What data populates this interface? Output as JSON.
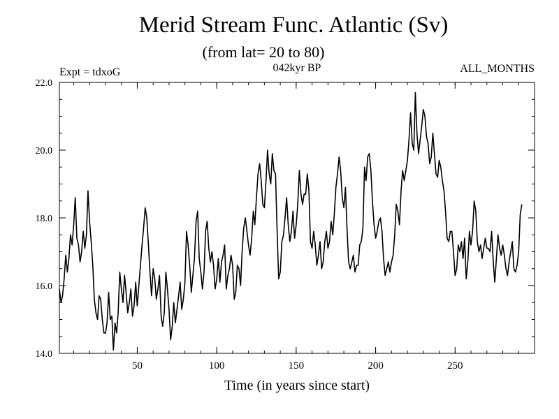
{
  "chart_data": {
    "type": "line",
    "title": "Merid Stream Func. Atlantic (Sv)",
    "subtitle": "(from lat= 20 to 80)",
    "left_label": "Expt = tdxoG",
    "center_label": "042kyr BP",
    "right_label": "ALL_MONTHS",
    "xlabel": "Time (in years since start)",
    "ylabel": "",
    "xlim": [
      1,
      300
    ],
    "ylim": [
      14.0,
      22.0
    ],
    "x_ticks": [
      50,
      100,
      150,
      200,
      250
    ],
    "x_tick_labels": [
      "50",
      "100",
      "150",
      "200",
      "250"
    ],
    "y_ticks": [
      14,
      16,
      18,
      20,
      22
    ],
    "y_tick_labels": [
      "14.0",
      "16.0",
      "18.0",
      "20.0",
      "22.0"
    ],
    "grid": false,
    "series": [
      {
        "name": "Merid Stream Func. Atlantic",
        "color": "#000000",
        "x_start": 1,
        "x_step": 1,
        "values": [
          15.9,
          15.5,
          15.7,
          16.2,
          16.9,
          16.4,
          16.8,
          17.5,
          17.2,
          17.8,
          18.6,
          17.4,
          17.2,
          16.7,
          17.0,
          17.6,
          17.1,
          17.5,
          18.8,
          17.9,
          17.3,
          16.6,
          15.6,
          15.2,
          15.0,
          15.7,
          15.6,
          15.0,
          14.6,
          14.6,
          14.9,
          15.8,
          15.0,
          15.1,
          14.1,
          14.9,
          14.6,
          15.2,
          16.4,
          15.9,
          15.5,
          16.3,
          15.8,
          15.2,
          15.5,
          15.9,
          15.1,
          15.4,
          16.1,
          15.4,
          16.0,
          16.6,
          17.2,
          17.7,
          18.3,
          18.0,
          17.2,
          16.4,
          15.7,
          16.5,
          16.2,
          15.6,
          15.9,
          16.3,
          15.1,
          14.8,
          15.2,
          16.4,
          15.9,
          15.3,
          14.4,
          14.8,
          15.5,
          14.9,
          15.3,
          15.7,
          16.1,
          15.3,
          15.6,
          16.1,
          17.6,
          17.2,
          16.6,
          15.8,
          16.3,
          16.8,
          17.9,
          18.2,
          16.8,
          16.4,
          15.9,
          16.4,
          17.6,
          17.9,
          17.1,
          16.7,
          17.0,
          16.6,
          15.9,
          16.2,
          16.8,
          16.1,
          16.7,
          16.9,
          17.2,
          15.9,
          16.3,
          16.5,
          16.9,
          16.6,
          15.6,
          15.8,
          16.6,
          16.5,
          16.0,
          17.0,
          17.7,
          18.0,
          17.6,
          17.2,
          16.9,
          17.4,
          18.2,
          17.8,
          18.6,
          19.3,
          19.6,
          19.1,
          18.4,
          18.3,
          19.1,
          20.0,
          19.3,
          19.0,
          19.9,
          19.4,
          19.3,
          17.6,
          16.2,
          16.4,
          17.3,
          17.5,
          18.0,
          18.6,
          17.8,
          17.3,
          17.6,
          18.2,
          17.4,
          17.8,
          18.4,
          19.4,
          18.7,
          18.4,
          18.7,
          18.7,
          19.3,
          18.8,
          17.3,
          17.1,
          17.6,
          17.2,
          16.6,
          16.9,
          17.3,
          16.5,
          16.7,
          17.3,
          17.6,
          17.1,
          17.3,
          17.9,
          17.5,
          18.1,
          18.9,
          19.3,
          19.8,
          19.4,
          18.6,
          18.3,
          18.9,
          17.7,
          16.7,
          16.5,
          16.7,
          16.9,
          16.4,
          16.6,
          16.6,
          17.2,
          17.3,
          17.7,
          19.5,
          19.1,
          19.8,
          19.9,
          19.4,
          18.5,
          17.8,
          17.4,
          17.6,
          17.9,
          18.0,
          17.6,
          16.8,
          16.3,
          16.5,
          16.7,
          16.4,
          16.7,
          16.9,
          17.5,
          18.4,
          18.2,
          17.8,
          18.8,
          19.4,
          19.1,
          19.4,
          19.7,
          20.3,
          21.1,
          20.2,
          20.0,
          21.7,
          20.5,
          19.9,
          20.3,
          20.7,
          21.2,
          21.0,
          20.4,
          20.2,
          19.6,
          19.8,
          20.5,
          19.9,
          19.3,
          19.2,
          19.7,
          19.5,
          19.1,
          18.8,
          18.2,
          17.4,
          17.3,
          17.6,
          17.6,
          17.0,
          16.3,
          16.5,
          17.2,
          17.0,
          17.3,
          16.8,
          17.4,
          16.2,
          16.7,
          17.6,
          17.2,
          17.6,
          18.5,
          18.2,
          17.3,
          17.0,
          17.2,
          16.8,
          17.1,
          17.4,
          17.1,
          17.1,
          17.0,
          17.6,
          16.7,
          16.1,
          16.8,
          17.5,
          17.1,
          16.9,
          17.2,
          16.9,
          16.5,
          16.3,
          16.7,
          17.0,
          17.3,
          16.5,
          16.4,
          16.6,
          17.0,
          18.1,
          18.4
        ]
      }
    ]
  }
}
